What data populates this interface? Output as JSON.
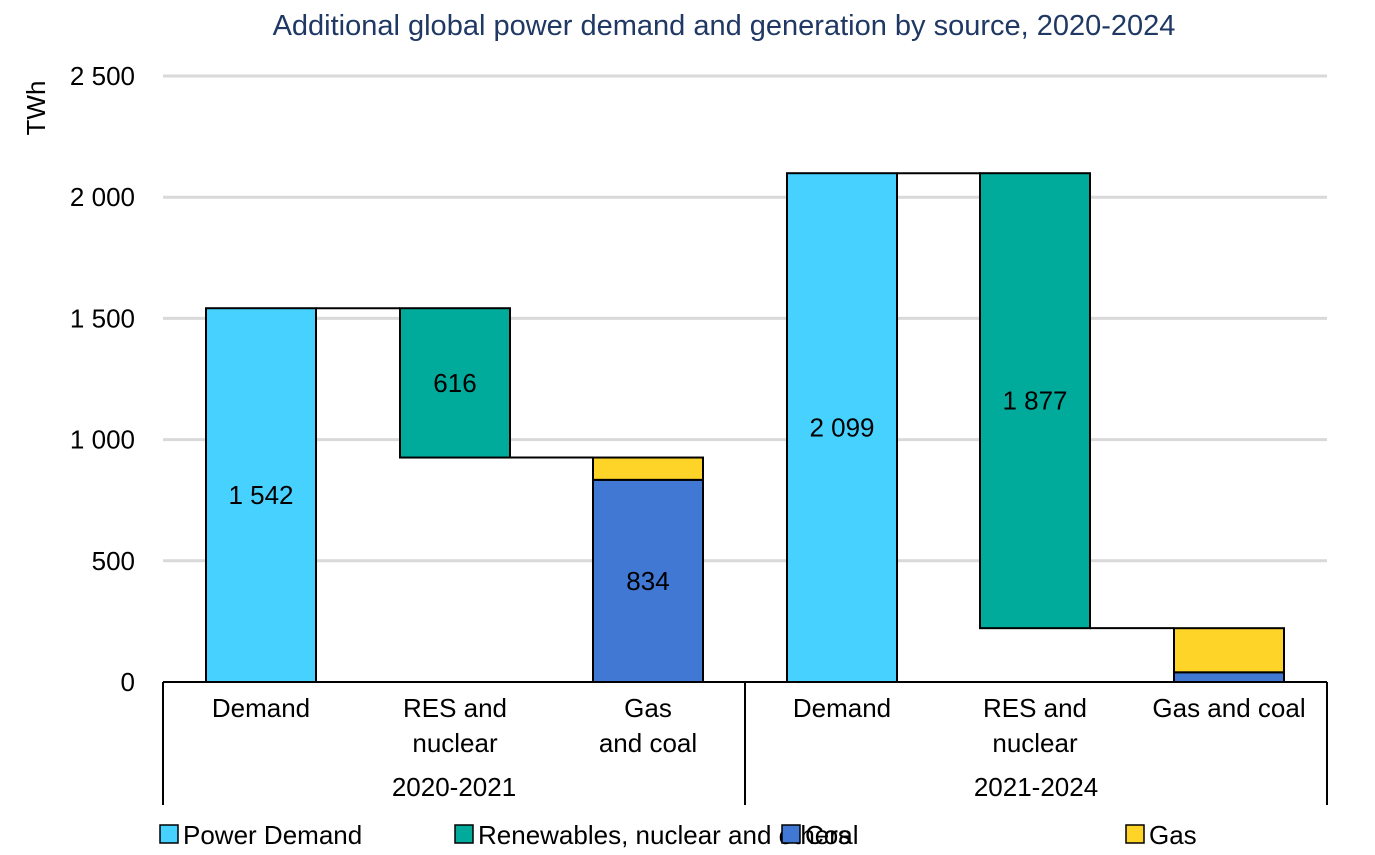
{
  "chart_data": {
    "type": "bar",
    "subtype": "stacked-waterfall",
    "title": "Additional global power demand and generation by source, 2020-2024",
    "ylabel": "TWh",
    "ylim": [
      0,
      2500
    ],
    "yticks": [
      0,
      500,
      1000,
      1500,
      2000,
      2500
    ],
    "ytick_labels": [
      "0",
      "500",
      "1 000",
      "1 500",
      "2 000",
      "2 500"
    ],
    "grid": true,
    "legend_position": "bottom",
    "colors": {
      "Power Demand": "#47d1ff",
      "Renewables, nuclear and others": "#00ab9c",
      "Coal": "#4178d4",
      "Gas": "#ffd428"
    },
    "groups": [
      {
        "label": "2020-2021",
        "bars": [
          {
            "category_lines": [
              "Demand"
            ],
            "segments": [
              {
                "series": "Power Demand",
                "base": 0,
                "value": 1542,
                "label": "1 542"
              }
            ]
          },
          {
            "category_lines": [
              "RES and",
              "nuclear"
            ],
            "segments": [
              {
                "series": "Renewables, nuclear and others",
                "base": 926,
                "value": 616,
                "label": "616"
              }
            ]
          },
          {
            "category_lines": [
              "Gas",
              "and coal"
            ],
            "segments": [
              {
                "series": "Coal",
                "base": 0,
                "value": 834,
                "label": "834"
              },
              {
                "series": "Gas",
                "base": 834,
                "value": 92,
                "label": ""
              }
            ]
          }
        ]
      },
      {
        "label": "2021-2024",
        "bars": [
          {
            "category_lines": [
              "Demand"
            ],
            "segments": [
              {
                "series": "Power Demand",
                "base": 0,
                "value": 2099,
                "label": "2 099"
              }
            ]
          },
          {
            "category_lines": [
              "RES and",
              "nuclear"
            ],
            "segments": [
              {
                "series": "Renewables, nuclear and others",
                "base": 222,
                "value": 1877,
                "label": "1 877"
              }
            ]
          },
          {
            "category_lines": [
              "Gas and coal"
            ],
            "segments": [
              {
                "series": "Coal",
                "base": 0,
                "value": 40,
                "label": ""
              },
              {
                "series": "Gas",
                "base": 40,
                "value": 182,
                "label": ""
              }
            ]
          }
        ]
      }
    ],
    "legend": [
      "Power Demand",
      "Renewables, nuclear and others",
      "Coal",
      "Gas"
    ]
  }
}
